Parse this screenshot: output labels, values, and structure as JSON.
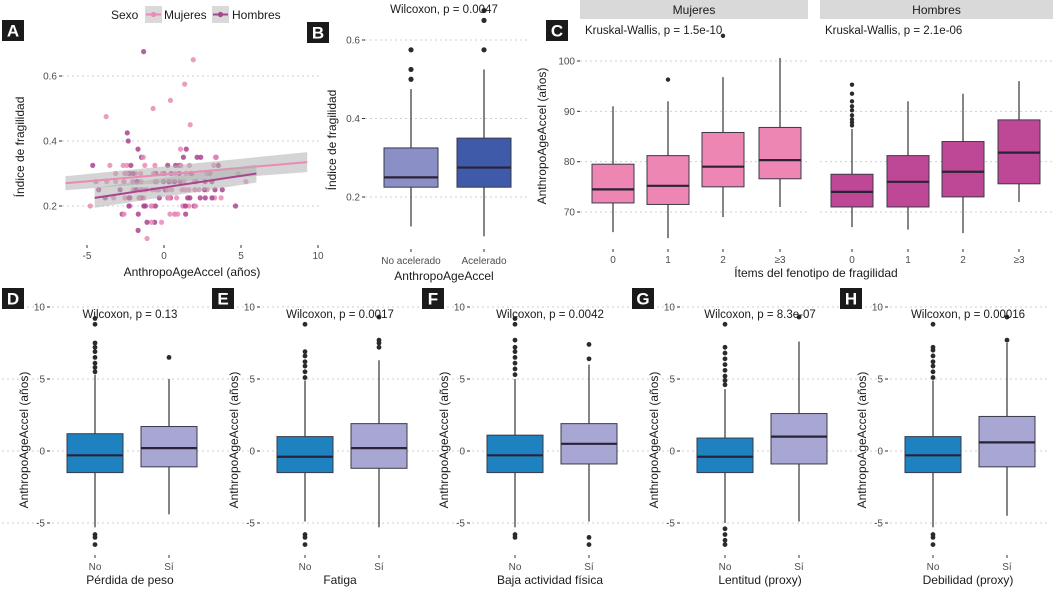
{
  "figure": {
    "panel_letters": [
      "A",
      "B",
      "C",
      "D",
      "E",
      "F",
      "G",
      "H"
    ]
  },
  "chart_data": [
    {
      "id": "A",
      "type": "scatter",
      "title": "",
      "xlabel": "AnthropoAgeAccel (años)",
      "ylabel": "Índice de fragilidad",
      "xlim": [
        -6.5,
        10
      ],
      "ylim": [
        0.08,
        0.68
      ],
      "xticks": [
        -5,
        0,
        5,
        10
      ],
      "yticks": [
        0.2,
        0.4,
        0.6
      ],
      "ytick_labels": [
        "0.2",
        "0.4",
        "0.6"
      ],
      "grid": true,
      "legend": {
        "title": "Sexo",
        "placement": "top",
        "entries": [
          "Mujeres",
          "Hombres"
        ]
      },
      "colors": {
        "Mujeres": "#e98bb5",
        "Hombres": "#a9448f",
        "ci": "#b0b0b0"
      },
      "trend_lines": [
        {
          "name": "Mujeres",
          "x": [
            -6.4,
            9.3
          ],
          "y": [
            0.27,
            0.335
          ]
        },
        {
          "name": "Hombres",
          "x": [
            -4.5,
            6.0
          ],
          "y": [
            0.225,
            0.3
          ]
        }
      ],
      "points_note": "dense scatter, frailty index discrete steps of ~0.025",
      "point_levels": [
        0.1,
        0.125,
        0.15,
        0.175,
        0.2,
        0.225,
        0.25,
        0.275,
        0.3,
        0.325,
        0.35,
        0.375,
        0.4,
        0.425,
        0.45,
        0.475,
        0.5,
        0.525,
        0.575,
        0.65,
        0.675
      ]
    },
    {
      "id": "B",
      "type": "box",
      "title": "Wilcoxon, p = 0.0047",
      "xlabel": "AnthropoAgeAccel",
      "ylabel": "Índice de fragilidad",
      "ylim": [
        0.08,
        0.68
      ],
      "yticks": [
        0.2,
        0.4,
        0.6
      ],
      "ytick_labels": [
        "0.2",
        "0.4",
        "0.6"
      ],
      "categories": [
        "No acelerado",
        "Acelerado"
      ],
      "colors": [
        "#8a8fc5",
        "#3f5aa8"
      ],
      "boxes": [
        {
          "min": 0.125,
          "q1": 0.225,
          "median": 0.25,
          "q3": 0.325,
          "max": 0.475,
          "outliers": [
            0.5,
            0.525,
            0.575
          ]
        },
        {
          "min": 0.1,
          "q1": 0.225,
          "median": 0.275,
          "q3": 0.35,
          "max": 0.525,
          "outliers": [
            0.575,
            0.65,
            0.675
          ]
        }
      ]
    },
    {
      "id": "C",
      "type": "box",
      "facets": [
        "Mujeres",
        "Hombres"
      ],
      "facet_titles": [
        "Kruskal-Wallis, p = 1.5e-10",
        "Kruskal-Wallis, p = 2.1e-06"
      ],
      "xlabel": "Ítems del fenotipo de fragilidad",
      "ylabel": "AnthropoAgeAccel (años)",
      "ylim": [
        62,
        104
      ],
      "yticks": [
        70,
        80,
        90,
        100
      ],
      "ytick_labels": [
        "70",
        "80",
        "90",
        "100"
      ],
      "categories": [
        "0",
        "1",
        "2",
        "≥3"
      ],
      "colors": {
        "Mujeres": "#ee86b3",
        "Hombres": "#bf4896"
      },
      "series": [
        {
          "name": "Mujeres",
          "boxes": [
            {
              "min": 66,
              "q1": 71.8,
              "median": 74.5,
              "q3": 79.5,
              "max": 91,
              "outliers": []
            },
            {
              "min": 64.8,
              "q1": 71.5,
              "median": 75.2,
              "q3": 81.2,
              "max": 92,
              "outliers": [
                96.3
              ]
            },
            {
              "min": 69,
              "q1": 75,
              "median": 79,
              "q3": 85.8,
              "max": 96.8,
              "outliers": [
                105
              ]
            },
            {
              "min": 71,
              "q1": 76.6,
              "median": 80.3,
              "q3": 86.8,
              "max": 100.6,
              "outliers": []
            }
          ]
        },
        {
          "name": "Hombres",
          "boxes": [
            {
              "min": 67,
              "q1": 71,
              "median": 74,
              "q3": 77.5,
              "max": 86.5,
              "outliers": [
                87.2,
                87.8,
                88.4,
                89.2,
                90.2,
                91,
                92,
                93.5,
                95.3
              ]
            },
            {
              "min": 66.5,
              "q1": 71,
              "median": 76,
              "q3": 81.2,
              "max": 92,
              "outliers": []
            },
            {
              "min": 65.8,
              "q1": 73,
              "median": 78,
              "q3": 84,
              "max": 93.5,
              "outliers": []
            },
            {
              "min": 72,
              "q1": 75.6,
              "median": 81.8,
              "q3": 88.3,
              "max": 96,
              "outliers": []
            }
          ]
        }
      ]
    },
    {
      "id": "D",
      "type": "box",
      "title": "Wilcoxon, p = 0.13",
      "xlabel": "Pérdida de peso",
      "ylabel": "AnthropoAgeAccel (años)",
      "ylim": [
        -7,
        10.5
      ],
      "yticks": [
        -5,
        0,
        5,
        10
      ],
      "ytick_labels": [
        "-5",
        "0",
        "5",
        "10"
      ],
      "categories": [
        "No",
        "Sí"
      ],
      "colors": [
        "#1f82c0",
        "#a8a6d3"
      ],
      "boxes": [
        {
          "min": -5.3,
          "q1": -1.5,
          "median": -0.3,
          "q3": 1.2,
          "max": 5.3,
          "outliers": [
            5.5,
            5.8,
            6.1,
            6.5,
            6.9,
            7.2,
            7.5,
            8.8,
            9.2,
            -5.8,
            -6.0,
            -6.5
          ]
        },
        {
          "min": -4.4,
          "q1": -1.1,
          "median": 0.2,
          "q3": 1.7,
          "max": 5.0,
          "outliers": [
            6.5
          ]
        }
      ]
    },
    {
      "id": "E",
      "type": "box",
      "title": "Wilcoxon, p = 0.0017",
      "xlabel": "Fatiga",
      "ylabel": "AnthropoAgeAccel (años)",
      "ylim": [
        -7,
        10.5
      ],
      "yticks": [
        -5,
        0,
        5,
        10
      ],
      "ytick_labels": [
        "-5",
        "0",
        "5",
        "10"
      ],
      "categories": [
        "No",
        "Sí"
      ],
      "colors": [
        "#1f82c0",
        "#a8a6d3"
      ],
      "boxes": [
        {
          "min": -4.9,
          "q1": -1.5,
          "median": -0.4,
          "q3": 1.0,
          "max": 4.9,
          "outliers": [
            5.1,
            5.5,
            5.9,
            6.2,
            6.6,
            6.9,
            8.8,
            -5.8,
            -6.0,
            -6.5
          ]
        },
        {
          "min": -5.3,
          "q1": -1.2,
          "median": 0.2,
          "q3": 1.9,
          "max": 6.3,
          "outliers": [
            7.2,
            7.5,
            7.7,
            9.3
          ]
        }
      ]
    },
    {
      "id": "F",
      "type": "box",
      "title": "Wilcoxon, p = 0.0042",
      "xlabel": "Baja actividad física",
      "ylabel": "AnthropoAgeAccel (años)",
      "ylim": [
        -7,
        10.5
      ],
      "yticks": [
        -5,
        0,
        5,
        10
      ],
      "ytick_labels": [
        "-5",
        "0",
        "5",
        "10"
      ],
      "categories": [
        "No",
        "Sí"
      ],
      "colors": [
        "#1f82c0",
        "#a8a6d3"
      ],
      "boxes": [
        {
          "min": -5.3,
          "q1": -1.5,
          "median": -0.3,
          "q3": 1.1,
          "max": 5.0,
          "outliers": [
            5.3,
            5.7,
            6.1,
            6.5,
            6.9,
            7.2,
            7.7,
            8.8,
            9.2,
            -5.8,
            -6.0
          ]
        },
        {
          "min": -4.9,
          "q1": -0.9,
          "median": 0.5,
          "q3": 1.9,
          "max": 6.0,
          "outliers": [
            6.4,
            7.4,
            -6.0,
            -6.5
          ]
        }
      ]
    },
    {
      "id": "G",
      "type": "box",
      "title": "Wilcoxon, p = 8.3e-07",
      "xlabel": "Lentitud (proxy)",
      "ylabel": "AnthropoAgeAccel (años)",
      "ylim": [
        -7,
        10.5
      ],
      "yticks": [
        -5,
        0,
        5,
        10
      ],
      "ytick_labels": [
        "-5",
        "0",
        "5",
        "10"
      ],
      "categories": [
        "No",
        "Sí"
      ],
      "colors": [
        "#1f82c0",
        "#a8a6d3"
      ],
      "boxes": [
        {
          "min": -5.0,
          "q1": -1.5,
          "median": -0.4,
          "q3": 0.9,
          "max": 4.3,
          "outliers": [
            4.6,
            4.9,
            5.2,
            5.6,
            6.0,
            6.4,
            6.8,
            7.2,
            8.8,
            -5.4,
            -5.8,
            -6.2,
            -6.5
          ]
        },
        {
          "min": -4.9,
          "q1": -0.9,
          "median": 1.0,
          "q3": 2.6,
          "max": 7.6,
          "outliers": [
            9.3
          ]
        }
      ]
    },
    {
      "id": "H",
      "type": "box",
      "title": "Wilcoxon, p = 0.00016",
      "xlabel": "Debilidad (proxy)",
      "ylabel": "AnthropoAgeAccel (años)",
      "ylim": [
        -7,
        10.5
      ],
      "yticks": [
        -5,
        0,
        5,
        10
      ],
      "ytick_labels": [
        "-5",
        "0",
        "5",
        "10"
      ],
      "categories": [
        "No",
        "Sí"
      ],
      "colors": [
        "#1f82c0",
        "#a8a6d3"
      ],
      "boxes": [
        {
          "min": -5.3,
          "q1": -1.5,
          "median": -0.3,
          "q3": 1.0,
          "max": 4.9,
          "outliers": [
            5.1,
            5.5,
            5.9,
            6.2,
            6.6,
            7.0,
            7.2,
            8.8,
            -5.8,
            -6.0,
            -6.5
          ]
        },
        {
          "min": -4.5,
          "q1": -1.1,
          "median": 0.6,
          "q3": 2.4,
          "max": 7.5,
          "outliers": [
            7.7,
            9.3
          ]
        }
      ]
    }
  ]
}
